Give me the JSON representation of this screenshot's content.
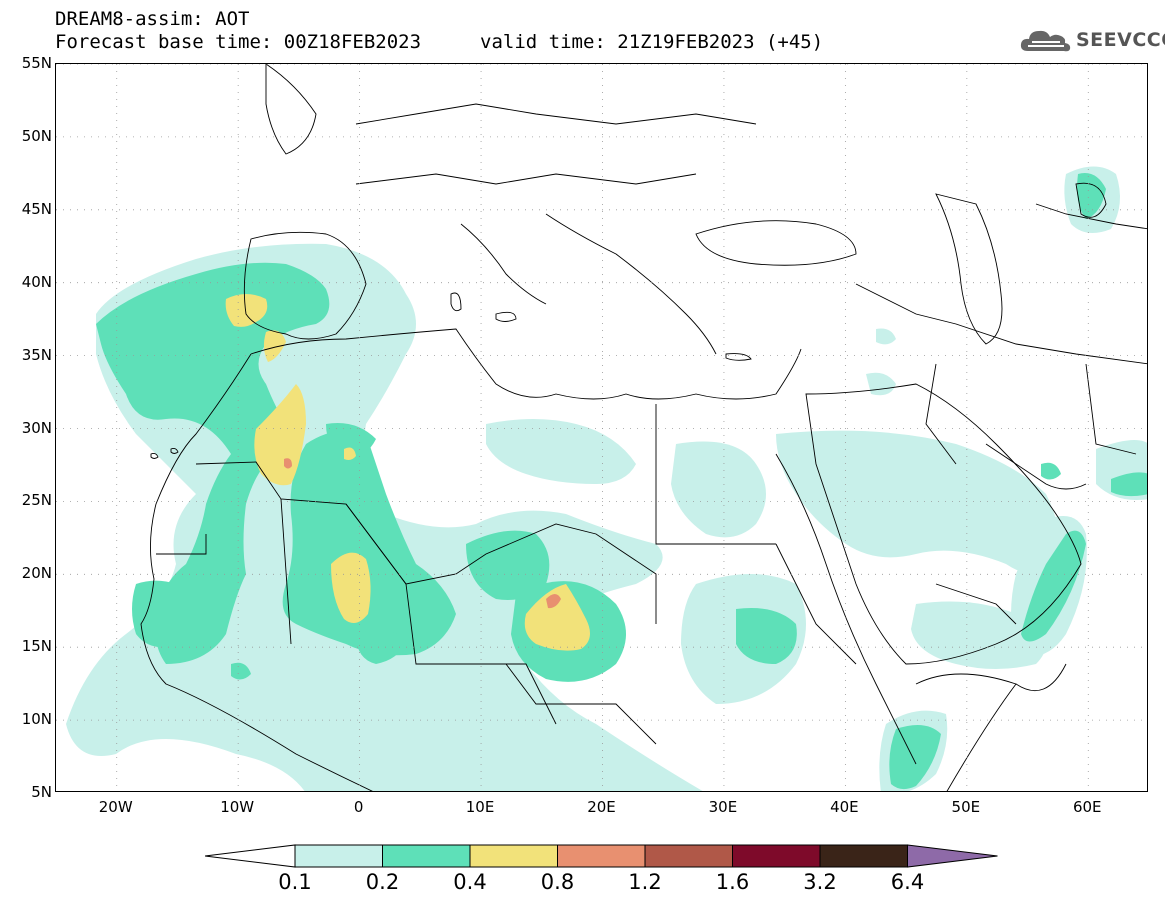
{
  "header": {
    "title_line1": "DREAM8-assim: AOT",
    "title_line2": "Forecast base time: 00Z18FEB2023",
    "valid_time": "valid time: 21Z19FEB2023 (+45)"
  },
  "logo": {
    "text": "SEEVCCC",
    "icon": "cloud-icon"
  },
  "map": {
    "lon_range": [
      -25,
      65
    ],
    "lat_range": [
      5,
      55
    ],
    "grid": "dotted",
    "lat_labels": [
      "55N",
      "50N",
      "45N",
      "40N",
      "35N",
      "30N",
      "25N",
      "20N",
      "15N",
      "10N",
      "5N"
    ],
    "lat_values": [
      55,
      50,
      45,
      40,
      35,
      30,
      25,
      20,
      15,
      10,
      5
    ],
    "lon_labels": [
      "20W",
      "10W",
      "0",
      "10E",
      "20E",
      "30E",
      "40E",
      "50E",
      "60E"
    ],
    "lon_values": [
      -20,
      -10,
      0,
      10,
      20,
      30,
      40,
      50,
      60
    ]
  },
  "legend": {
    "thresholds": [
      "0.1",
      "0.2",
      "0.4",
      "0.8",
      "1.2",
      "1.6",
      "3.2",
      "6.4"
    ],
    "colors": [
      "#c8f0ea",
      "#5ee0b8",
      "#f2e27a",
      "#e89070",
      "#b05848",
      "#7e0a2a",
      "#3a2418",
      "#8e6aa8"
    ],
    "under_color": "#ffffff"
  },
  "aot_colors": {
    "c1": "#c8f0ea",
    "c2": "#5ee0b8",
    "c3": "#f2e27a",
    "c4": "#e89070"
  }
}
